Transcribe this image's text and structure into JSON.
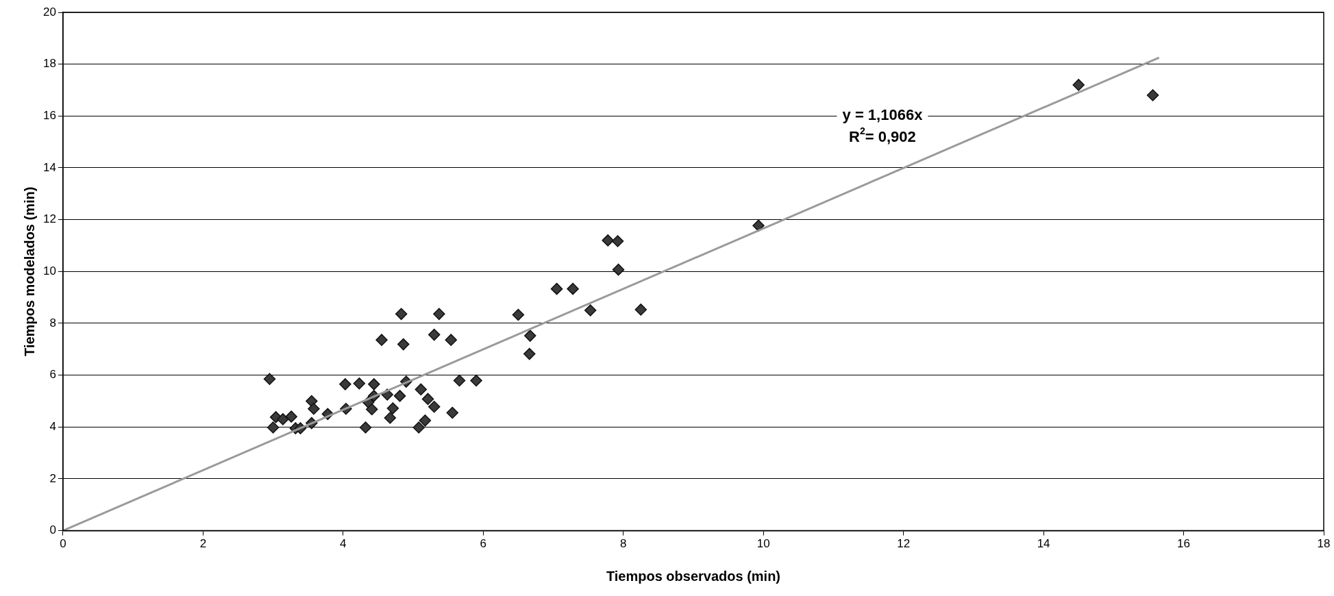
{
  "chart_data": {
    "type": "scatter",
    "xlabel": "Tiempos observados (min)",
    "ylabel": "Tiempos modelados (min)",
    "xlim": [
      0,
      18
    ],
    "xticks": [
      0,
      2,
      4,
      6,
      8,
      10,
      12,
      14,
      16,
      18
    ],
    "ylim": [
      0,
      20
    ],
    "yticks": [
      0,
      2,
      4,
      6,
      8,
      10,
      12,
      14,
      16,
      18,
      20
    ],
    "grid": "y",
    "marker": "diamond",
    "legend": false,
    "annotations": [
      "y = 1,1066x",
      "R$^{2}$= 0,902"
    ],
    "series": [
      {
        "color": "#3a3a3a",
        "x": [
          2.95,
          3.0,
          3.04,
          3.14,
          3.26,
          3.32,
          3.39,
          3.55,
          3.58,
          3.55,
          3.78,
          4.03,
          4.04,
          4.23,
          4.32,
          4.36,
          4.41,
          4.44,
          4.44,
          4.55,
          4.63,
          4.67,
          4.71,
          4.81,
          4.83,
          4.86,
          4.9,
          5.08,
          5.11,
          5.17,
          5.21,
          5.3,
          5.3,
          5.37,
          5.54,
          5.56,
          5.66,
          5.9,
          6.5,
          6.66,
          6.67,
          7.05,
          7.28,
          7.53,
          7.78,
          7.92,
          7.93,
          8.25,
          9.93,
          14.5,
          15.56
        ],
        "values": [
          5.85,
          3.98,
          4.38,
          4.3,
          4.4,
          3.95,
          3.95,
          5.0,
          4.7,
          4.15,
          4.5,
          5.65,
          4.7,
          5.68,
          3.98,
          4.95,
          4.68,
          5.65,
          5.2,
          7.36,
          5.25,
          4.35,
          4.72,
          5.2,
          8.36,
          7.19,
          5.75,
          3.98,
          5.45,
          4.25,
          5.08,
          4.78,
          7.56,
          8.36,
          7.36,
          4.55,
          5.79,
          5.79,
          8.33,
          6.82,
          7.52,
          9.33,
          9.33,
          8.5,
          11.2,
          11.17,
          10.07,
          8.53,
          11.77,
          17.2,
          16.8
        ]
      },
      {
        "type": "line",
        "color": "#9a9a9a",
        "marker": "none",
        "x": [
          0,
          15.65
        ],
        "values": [
          0,
          18.25
        ]
      }
    ]
  }
}
